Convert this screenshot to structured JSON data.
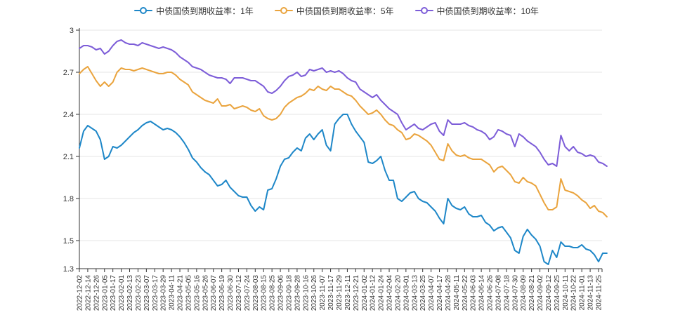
{
  "legend": {
    "items": [
      {
        "label": "中债国债到期收益率：1年",
        "color": "#1e87c8"
      },
      {
        "label": "中债国债到期收益率：5年",
        "color": "#eaa43e"
      },
      {
        "label": "中债国债到期收益率：10年",
        "color": "#7d5dd8"
      }
    ]
  },
  "axes": {
    "y_tick_labels": [
      "3",
      "2.7",
      "2.4",
      "2.1",
      "1.8",
      "1.5",
      "1.3"
    ]
  },
  "colors": {
    "grid": "#e4e4e4",
    "axis_line": "#333333",
    "tick_text": "#333333",
    "background": "#ffffff"
  },
  "chart_data": {
    "type": "line",
    "title": "",
    "xlabel": "",
    "ylabel": "",
    "grid": true,
    "legend_position": "top-center",
    "y_axis": {
      "min": 1.3,
      "max": 3.0,
      "ticks": [
        3,
        2.7,
        2.4,
        2.1,
        1.8,
        1.5,
        1.3
      ]
    },
    "x_axis": {
      "labels": [
        "2022-12-02",
        "2022-12-14",
        "2022-12-26",
        "2023-01-05",
        "2023-01-17",
        "2023-02-01",
        "2023-02-13",
        "2023-02-23",
        "2023-03-07",
        "2023-03-17",
        "2023-03-29",
        "2023-04-11",
        "2023-04-21",
        "2023-05-05",
        "2023-05-16",
        "2023-05-26",
        "2023-06-07",
        "2023-06-19",
        "2023-06-30",
        "2023-07-12",
        "2023-07-24",
        "2023-08-03",
        "2023-08-15",
        "2023-08-25",
        "2023-09-06",
        "2023-09-18",
        "2023-09-28",
        "2023-10-16",
        "2023-10-26",
        "2023-11-07",
        "2023-11-17",
        "2023-11-29",
        "2023-12-11",
        "2023-12-21",
        "2024-01-02",
        "2024-01-12",
        "2024-01-24",
        "2024-02-04",
        "2024-02-20",
        "2024-03-01",
        "2024-03-13",
        "2024-03-25",
        "2024-04-07",
        "2024-04-17",
        "2024-04-28",
        "2024-05-11",
        "2024-05-22",
        "2024-06-03",
        "2024-06-14",
        "2024-06-26",
        "2024-07-08",
        "2024-07-18",
        "2024-07-30",
        "2024-08-09",
        "2024-08-21",
        "2024-09-02",
        "2024-09-12",
        "2024-09-25",
        "2024-10-11",
        "2024-10-22",
        "2024-11-01",
        "2024-11-13",
        "2024-11-25"
      ],
      "samples_per_interval": 2,
      "note": "Daily yield curves approximated: series values are sampled at each axis label, at the midpoint between consecutive labels, plus 2 trailing samples where the lines extend past the last label. Values in percent."
    },
    "series": [
      {
        "name": "中债国债到期收益率：1年",
        "color": "#1e87c8",
        "values": [
          2.16,
          2.28,
          2.32,
          2.3,
          2.28,
          2.22,
          2.08,
          2.1,
          2.17,
          2.16,
          2.18,
          2.21,
          2.24,
          2.27,
          2.29,
          2.32,
          2.34,
          2.35,
          2.33,
          2.31,
          2.29,
          2.3,
          2.29,
          2.27,
          2.24,
          2.2,
          2.15,
          2.09,
          2.06,
          2.02,
          1.99,
          1.97,
          1.93,
          1.89,
          1.9,
          1.93,
          1.88,
          1.85,
          1.82,
          1.81,
          1.81,
          1.75,
          1.71,
          1.74,
          1.72,
          1.86,
          1.87,
          1.94,
          2.03,
          2.08,
          2.09,
          2.13,
          2.16,
          2.14,
          2.23,
          2.26,
          2.22,
          2.26,
          2.29,
          2.18,
          2.14,
          2.33,
          2.37,
          2.4,
          2.4,
          2.33,
          2.28,
          2.24,
          2.2,
          2.06,
          2.05,
          2.07,
          2.1,
          2.0,
          1.93,
          1.93,
          1.8,
          1.78,
          1.81,
          1.84,
          1.85,
          1.8,
          1.78,
          1.77,
          1.74,
          1.71,
          1.66,
          1.62,
          1.8,
          1.75,
          1.73,
          1.72,
          1.74,
          1.69,
          1.67,
          1.67,
          1.68,
          1.63,
          1.61,
          1.57,
          1.59,
          1.6,
          1.56,
          1.52,
          1.43,
          1.41,
          1.53,
          1.58,
          1.54,
          1.51,
          1.46,
          1.35,
          1.33,
          1.43,
          1.38,
          1.49,
          1.46,
          1.46,
          1.45,
          1.45,
          1.47,
          1.44,
          1.43,
          1.4,
          1.35,
          1.41,
          1.41
        ]
      },
      {
        "name": "中债国债到期收益率：5年",
        "color": "#eaa43e",
        "values": [
          2.69,
          2.72,
          2.74,
          2.69,
          2.64,
          2.6,
          2.63,
          2.6,
          2.63,
          2.7,
          2.73,
          2.72,
          2.72,
          2.71,
          2.72,
          2.73,
          2.72,
          2.71,
          2.7,
          2.69,
          2.69,
          2.7,
          2.7,
          2.68,
          2.65,
          2.63,
          2.61,
          2.56,
          2.54,
          2.52,
          2.5,
          2.49,
          2.48,
          2.51,
          2.46,
          2.46,
          2.47,
          2.44,
          2.45,
          2.46,
          2.45,
          2.43,
          2.42,
          2.44,
          2.39,
          2.37,
          2.36,
          2.37,
          2.4,
          2.45,
          2.48,
          2.5,
          2.52,
          2.53,
          2.55,
          2.58,
          2.57,
          2.6,
          2.58,
          2.57,
          2.6,
          2.58,
          2.58,
          2.56,
          2.54,
          2.53,
          2.5,
          2.46,
          2.43,
          2.4,
          2.41,
          2.43,
          2.4,
          2.36,
          2.33,
          2.32,
          2.29,
          2.27,
          2.22,
          2.23,
          2.26,
          2.25,
          2.23,
          2.21,
          2.18,
          2.13,
          2.08,
          2.07,
          2.19,
          2.14,
          2.11,
          2.1,
          2.11,
          2.09,
          2.08,
          2.08,
          2.08,
          2.06,
          2.04,
          1.99,
          2.02,
          2.03,
          2.0,
          1.97,
          1.92,
          1.91,
          1.95,
          1.92,
          1.91,
          1.89,
          1.83,
          1.77,
          1.72,
          1.72,
          1.74,
          1.94,
          1.86,
          1.85,
          1.84,
          1.82,
          1.79,
          1.77,
          1.73,
          1.75,
          1.71,
          1.7,
          1.67
        ]
      },
      {
        "name": "中债国债到期收益率：10年",
        "color": "#7d5dd8",
        "values": [
          2.87,
          2.89,
          2.89,
          2.88,
          2.86,
          2.87,
          2.83,
          2.85,
          2.89,
          2.92,
          2.93,
          2.91,
          2.9,
          2.9,
          2.89,
          2.91,
          2.9,
          2.89,
          2.88,
          2.87,
          2.88,
          2.87,
          2.86,
          2.84,
          2.81,
          2.79,
          2.77,
          2.74,
          2.73,
          2.72,
          2.7,
          2.68,
          2.67,
          2.66,
          2.66,
          2.65,
          2.62,
          2.66,
          2.66,
          2.66,
          2.65,
          2.64,
          2.64,
          2.62,
          2.6,
          2.56,
          2.55,
          2.57,
          2.6,
          2.64,
          2.67,
          2.68,
          2.7,
          2.67,
          2.68,
          2.72,
          2.71,
          2.72,
          2.73,
          2.7,
          2.71,
          2.7,
          2.71,
          2.69,
          2.66,
          2.64,
          2.63,
          2.58,
          2.56,
          2.54,
          2.52,
          2.54,
          2.5,
          2.47,
          2.44,
          2.42,
          2.4,
          2.34,
          2.29,
          2.31,
          2.33,
          2.3,
          2.29,
          2.31,
          2.33,
          2.34,
          2.28,
          2.25,
          2.36,
          2.33,
          2.33,
          2.33,
          2.34,
          2.32,
          2.31,
          2.29,
          2.28,
          2.26,
          2.22,
          2.24,
          2.29,
          2.28,
          2.26,
          2.25,
          2.17,
          2.26,
          2.24,
          2.21,
          2.19,
          2.17,
          2.13,
          2.08,
          2.04,
          2.05,
          2.03,
          2.25,
          2.17,
          2.14,
          2.17,
          2.13,
          2.12,
          2.1,
          2.11,
          2.1,
          2.06,
          2.05,
          2.03
        ]
      }
    ]
  }
}
